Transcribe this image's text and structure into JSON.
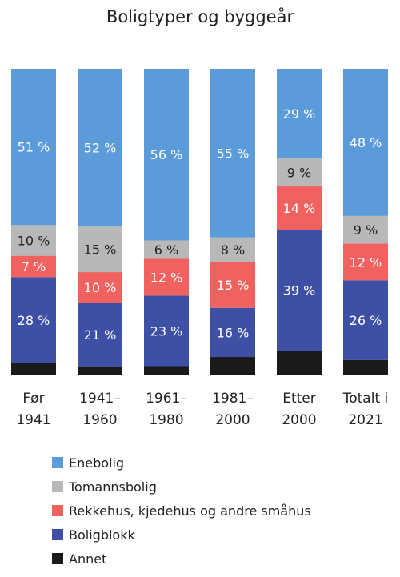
{
  "chart_data": {
    "type": "bar",
    "stacked": true,
    "normalized": true,
    "title": "Boligtyper og byggeår",
    "categories": [
      [
        "Før",
        "1941"
      ],
      [
        "1941–",
        "1960"
      ],
      [
        "1961–",
        "1980"
      ],
      [
        "1981–",
        "2000"
      ],
      [
        "Etter",
        "2000"
      ],
      [
        "Totalt i",
        "2021"
      ]
    ],
    "series": [
      {
        "name": "Annet",
        "color": "#1a1a1a",
        "values": [
          4,
          3,
          3,
          6,
          8,
          5
        ]
      },
      {
        "name": "Boligblokk",
        "color": "#3e4fa6",
        "values": [
          28,
          21,
          23,
          16,
          39,
          26
        ]
      },
      {
        "name": "Rekkehus, kjedehus og andre småhus",
        "color": "#f0625f",
        "values": [
          7,
          10,
          12,
          15,
          14,
          12
        ]
      },
      {
        "name": "Tomannsbolig",
        "color": "#b8b8b8",
        "values": [
          10,
          15,
          6,
          8,
          9,
          9
        ]
      },
      {
        "name": "Enebolig",
        "color": "#5b9bd9",
        "values": [
          51,
          52,
          56,
          55,
          29,
          48
        ]
      }
    ],
    "data_labels": [
      [
        null,
        "28 %",
        "7 %",
        "10 %",
        "51 %"
      ],
      [
        null,
        "21 %",
        "10 %",
        "15 %",
        "52 %"
      ],
      [
        null,
        "23 %",
        "12 %",
        "6 %",
        "56 %"
      ],
      [
        null,
        "16 %",
        "15 %",
        "8 %",
        "55 %"
      ],
      [
        null,
        "39 %",
        "14 %",
        "9 %",
        "29 %"
      ],
      [
        null,
        "26 %",
        "12 %",
        "9 %",
        "48 %"
      ]
    ],
    "ylim": [
      0,
      100
    ],
    "grid": false,
    "legend": {
      "placement": "bottom",
      "order": [
        "Enebolig",
        "Tomannsbolig",
        "Rekkehus, kjedehus og andre småhus",
        "Boligblokk",
        "Annet"
      ]
    }
  }
}
